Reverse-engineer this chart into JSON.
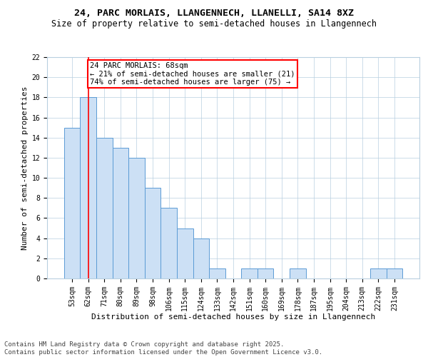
{
  "title": "24, PARC MORLAIS, LLANGENNECH, LLANELLI, SA14 8XZ",
  "subtitle": "Size of property relative to semi-detached houses in Llangennech",
  "xlabel": "Distribution of semi-detached houses by size in Llangennech",
  "ylabel": "Number of semi-detached properties",
  "categories": [
    "53sqm",
    "62sqm",
    "71sqm",
    "80sqm",
    "89sqm",
    "98sqm",
    "106sqm",
    "115sqm",
    "124sqm",
    "133sqm",
    "142sqm",
    "151sqm",
    "160sqm",
    "169sqm",
    "178sqm",
    "187sqm",
    "195sqm",
    "204sqm",
    "213sqm",
    "222sqm",
    "231sqm"
  ],
  "values": [
    15,
    18,
    14,
    13,
    12,
    9,
    7,
    5,
    4,
    1,
    0,
    1,
    1,
    0,
    1,
    0,
    0,
    0,
    0,
    1,
    1
  ],
  "bar_color": "#cce0f5",
  "bar_edge_color": "#5b9bd5",
  "vline_x": 1,
  "annotation_text": "24 PARC MORLAIS: 68sqm\n← 21% of semi-detached houses are smaller (21)\n74% of semi-detached houses are larger (75) →",
  "annotation_box_color": "white",
  "annotation_box_edge_color": "red",
  "ylim": [
    0,
    22
  ],
  "yticks": [
    0,
    2,
    4,
    6,
    8,
    10,
    12,
    14,
    16,
    18,
    20,
    22
  ],
  "background_color": "white",
  "grid_color": "#b8cfe0",
  "footer": "Contains HM Land Registry data © Crown copyright and database right 2025.\nContains public sector information licensed under the Open Government Licence v3.0.",
  "title_fontsize": 9.5,
  "subtitle_fontsize": 8.5,
  "xlabel_fontsize": 8,
  "ylabel_fontsize": 8,
  "tick_fontsize": 7,
  "annotation_fontsize": 7.5,
  "footer_fontsize": 6.5
}
